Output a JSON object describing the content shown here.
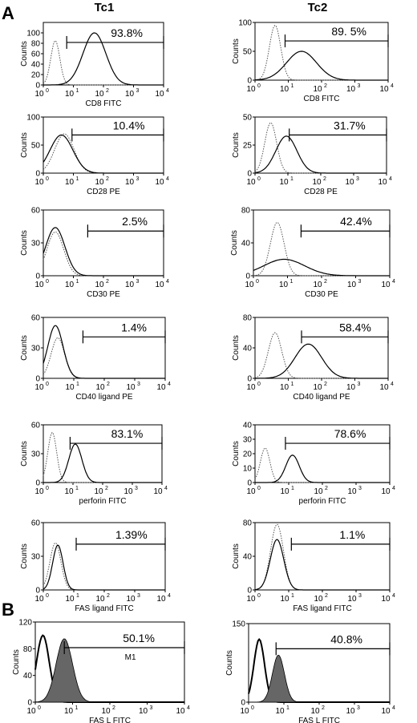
{
  "figure": {
    "panel_labels": [
      "A",
      "B"
    ],
    "column_titles": [
      "Tc1",
      "Tc2"
    ]
  },
  "colors": {
    "solid": "#000000",
    "dotted": "#555555",
    "fill": "#666666",
    "frame": "#000000"
  },
  "chart_data": [
    {
      "type": "area",
      "panel": "A",
      "column": "Tc1",
      "xlabel": "CD8 FITC",
      "ylabel": "Counts",
      "x_scale": "log",
      "xlim": [
        1,
        10000
      ],
      "x_ticks": [
        "10",
        "10",
        "10",
        "10",
        "10"
      ],
      "x_tick_exponents": [
        "0",
        "1",
        "2",
        "3",
        "4"
      ],
      "ylim": [
        0,
        120
      ],
      "y_ticks": [
        "0",
        "20",
        "40",
        "60",
        "80",
        "100"
      ],
      "gate_label": "93.8%",
      "gate_range": [
        6,
        10000
      ],
      "series": [
        {
          "style": "dotted",
          "peaks": [
            {
              "center": 2.5,
              "height": 85,
              "width": 0.15
            }
          ]
        },
        {
          "style": "solid",
          "peaks": [
            {
              "center": 50,
              "height": 100,
              "width": 0.38
            }
          ]
        }
      ]
    },
    {
      "type": "area",
      "panel": "A",
      "column": "Tc2",
      "xlabel": "CD8 FITC",
      "ylabel": "Counts",
      "x_scale": "log",
      "xlim": [
        1,
        10000
      ],
      "x_ticks": [
        "10",
        "10",
        "10",
        "10",
        "10"
      ],
      "x_tick_exponents": [
        "0",
        "1",
        "2",
        "3",
        "4"
      ],
      "ylim": [
        0,
        100
      ],
      "y_ticks": [
        "0",
        "50",
        "100"
      ],
      "gate_label": "89. 5%",
      "gate_range": [
        8,
        10000
      ],
      "series": [
        {
          "style": "dotted",
          "peaks": [
            {
              "center": 4,
              "height": 95,
              "width": 0.17
            }
          ]
        },
        {
          "style": "solid",
          "peaks": [
            {
              "center": 25,
              "height": 50,
              "width": 0.45
            }
          ]
        }
      ]
    },
    {
      "type": "area",
      "panel": "A",
      "column": "Tc1",
      "xlabel": "CD28 PE",
      "ylabel": "Counts",
      "x_scale": "log",
      "xlim": [
        1,
        10000
      ],
      "x_ticks": [
        "10",
        "10",
        "10",
        "10",
        "10"
      ],
      "x_tick_exponents": [
        "0",
        "1",
        "2",
        "3",
        "4"
      ],
      "ylim": [
        0,
        100
      ],
      "y_ticks": [
        "0",
        "50",
        "100"
      ],
      "gate_label": "10.4%",
      "gate_range": [
        9,
        10000
      ],
      "series": [
        {
          "style": "dotted",
          "peaks": [
            {
              "center": 5,
              "height": 70,
              "width": 0.32
            }
          ]
        },
        {
          "style": "solid",
          "peaks": [
            {
              "center": 4,
              "height": 68,
              "width": 0.38
            }
          ]
        }
      ]
    },
    {
      "type": "area",
      "panel": "A",
      "column": "Tc2",
      "xlabel": "CD28 PE",
      "ylabel": "Counts",
      "x_scale": "log",
      "xlim": [
        1,
        10000
      ],
      "x_ticks": [
        "10",
        "10",
        "10",
        "10",
        "10"
      ],
      "x_tick_exponents": [
        "0",
        "1",
        "2",
        "3",
        "4"
      ],
      "ylim": [
        0,
        50
      ],
      "y_ticks": [
        "0",
        "25",
        "50"
      ],
      "gate_label": "31.7%",
      "gate_range": [
        11,
        10000
      ],
      "series": [
        {
          "style": "dotted",
          "peaks": [
            {
              "center": 3,
              "height": 45,
              "width": 0.18
            }
          ]
        },
        {
          "style": "solid",
          "peaks": [
            {
              "center": 9,
              "height": 33,
              "width": 0.32
            }
          ]
        }
      ]
    },
    {
      "type": "area",
      "panel": "A",
      "column": "Tc1",
      "xlabel": "CD30 PE",
      "ylabel": "Counts",
      "x_scale": "log",
      "xlim": [
        1,
        10000
      ],
      "x_ticks": [
        "10",
        "10",
        "10",
        "10",
        "10"
      ],
      "x_tick_exponents": [
        "0",
        "1",
        "2",
        "3",
        "4"
      ],
      "ylim": [
        0,
        60
      ],
      "y_ticks": [
        "0",
        "30",
        "60"
      ],
      "gate_label": "2.5%",
      "gate_range": [
        30,
        10000
      ],
      "series": [
        {
          "style": "dotted",
          "peaks": [
            {
              "center": 2.5,
              "height": 40,
              "width": 0.28
            }
          ]
        },
        {
          "style": "solid",
          "peaks": [
            {
              "center": 2.5,
              "height": 44,
              "width": 0.32
            }
          ]
        }
      ]
    },
    {
      "type": "area",
      "panel": "A",
      "column": "Tc2",
      "xlabel": "CD30 PE",
      "ylabel": "Counts",
      "x_scale": "log",
      "xlim": [
        1,
        10000
      ],
      "x_ticks": [
        "10",
        "10",
        "10",
        "10",
        "10"
      ],
      "x_tick_exponents": [
        "0",
        "1",
        "2",
        "3",
        "4"
      ],
      "ylim": [
        0,
        80
      ],
      "y_ticks": [
        "0",
        "40",
        "80"
      ],
      "gate_label": "42.4%",
      "gate_range": [
        25,
        10000
      ],
      "series": [
        {
          "style": "dotted",
          "peaks": [
            {
              "center": 5,
              "height": 65,
              "width": 0.2
            }
          ]
        },
        {
          "style": "solid",
          "peaks": [
            {
              "center": 8,
              "height": 20,
              "width": 0.6
            }
          ]
        }
      ]
    },
    {
      "type": "area",
      "panel": "A",
      "column": "Tc1",
      "xlabel": "CD40 ligand PE",
      "ylabel": "Counts",
      "x_scale": "log",
      "xlim": [
        1,
        10000
      ],
      "x_ticks": [
        "10",
        "10",
        "10",
        "10",
        "10"
      ],
      "x_tick_exponents": [
        "0",
        "1",
        "2",
        "3",
        "4"
      ],
      "ylim": [
        0,
        60
      ],
      "y_ticks": [
        "0",
        "30",
        "60"
      ],
      "gate_label": "1.4%",
      "gate_range": [
        20,
        10000
      ],
      "series": [
        {
          "style": "dotted",
          "peaks": [
            {
              "center": 3,
              "height": 40,
              "width": 0.22
            }
          ]
        },
        {
          "style": "solid",
          "peaks": [
            {
              "center": 2.5,
              "height": 52,
              "width": 0.25
            }
          ]
        }
      ]
    },
    {
      "type": "area",
      "panel": "A",
      "column": "Tc2",
      "xlabel": "CD40 ligand PE",
      "ylabel": "Counts",
      "x_scale": "log",
      "xlim": [
        1,
        10000
      ],
      "x_ticks": [
        "10",
        "10",
        "10",
        "10",
        "10"
      ],
      "x_tick_exponents": [
        "0",
        "1",
        "2",
        "3",
        "4"
      ],
      "ylim": [
        0,
        80
      ],
      "y_ticks": [
        "0",
        "40",
        "80"
      ],
      "gate_label": "58.4%",
      "gate_range": [
        25,
        10000
      ],
      "series": [
        {
          "style": "dotted",
          "peaks": [
            {
              "center": 4,
              "height": 60,
              "width": 0.2
            }
          ]
        },
        {
          "style": "solid",
          "peaks": [
            {
              "center": 40,
              "height": 45,
              "width": 0.4
            }
          ]
        }
      ]
    },
    {
      "type": "area",
      "panel": "A",
      "column": "Tc1",
      "xlabel": "perforin FITC",
      "ylabel": "Counts",
      "x_scale": "log",
      "xlim": [
        1,
        10000
      ],
      "x_ticks": [
        "10",
        "10",
        "10",
        "10",
        "10"
      ],
      "x_tick_exponents": [
        "0",
        "1",
        "2",
        "3",
        "4"
      ],
      "ylim": [
        0,
        60
      ],
      "y_ticks": [
        "0",
        "30",
        "60"
      ],
      "gate_label": "83.1%",
      "gate_range": [
        8,
        10000
      ],
      "series": [
        {
          "style": "dotted",
          "peaks": [
            {
              "center": 2,
              "height": 52,
              "width": 0.15
            }
          ]
        },
        {
          "style": "solid",
          "peaks": [
            {
              "center": 12,
              "height": 40,
              "width": 0.22
            }
          ]
        }
      ]
    },
    {
      "type": "area",
      "panel": "A",
      "column": "Tc2",
      "xlabel": "perforin FITC",
      "ylabel": "Counts",
      "x_scale": "log",
      "xlim": [
        1,
        10000
      ],
      "x_ticks": [
        "10",
        "10",
        "10",
        "10",
        "10"
      ],
      "x_tick_exponents": [
        "0",
        "1",
        "2",
        "3",
        "4"
      ],
      "ylim": [
        0,
        40
      ],
      "y_ticks": [
        "0",
        "10",
        "20",
        "30",
        "40"
      ],
      "gate_label": "78.6%",
      "gate_range": [
        8,
        10000
      ],
      "series": [
        {
          "style": "dotted",
          "peaks": [
            {
              "center": 2,
              "height": 24,
              "width": 0.14
            }
          ]
        },
        {
          "style": "solid",
          "peaks": [
            {
              "center": 13,
              "height": 19,
              "width": 0.2
            }
          ]
        }
      ]
    },
    {
      "type": "area",
      "panel": "A",
      "column": "Tc1",
      "xlabel": "FAS ligand FITC",
      "ylabel": "Counts",
      "x_scale": "log",
      "xlim": [
        1,
        10000
      ],
      "x_ticks": [
        "10",
        "10",
        "10",
        "10",
        "10"
      ],
      "x_tick_exponents": [
        "0",
        "1",
        "2",
        "3",
        "4"
      ],
      "ylim": [
        0,
        60
      ],
      "y_ticks": [
        "0",
        "30",
        "60"
      ],
      "gate_label": "1.39%",
      "gate_range": [
        12,
        10000
      ],
      "series": [
        {
          "style": "dotted",
          "peaks": [
            {
              "center": 2.5,
              "height": 42,
              "width": 0.18
            }
          ]
        },
        {
          "style": "solid",
          "peaks": [
            {
              "center": 3,
              "height": 40,
              "width": 0.17
            }
          ]
        }
      ]
    },
    {
      "type": "area",
      "panel": "A",
      "column": "Tc2",
      "xlabel": "FAS ligand FITC",
      "ylabel": "Counts",
      "x_scale": "log",
      "xlim": [
        1,
        10000
      ],
      "x_ticks": [
        "10",
        "10",
        "10",
        "10",
        "10"
      ],
      "x_tick_exponents": [
        "0",
        "1",
        "2",
        "3",
        "4"
      ],
      "ylim": [
        0,
        80
      ],
      "y_ticks": [
        "0",
        "40",
        "80"
      ],
      "gate_label": "1.1%",
      "gate_range": [
        12,
        10000
      ],
      "series": [
        {
          "style": "dotted",
          "peaks": [
            {
              "center": 4.5,
              "height": 78,
              "width": 0.19
            }
          ]
        },
        {
          "style": "solid",
          "peaks": [
            {
              "center": 4.5,
              "height": 60,
              "width": 0.2
            }
          ]
        }
      ]
    },
    {
      "type": "area",
      "panel": "B",
      "column": "Tc1",
      "xlabel": "FAS L FITC",
      "ylabel": "Counts",
      "x_scale": "log",
      "xlim": [
        1,
        10000
      ],
      "x_ticks": [
        "10",
        "10",
        "10",
        "10",
        "10"
      ],
      "x_tick_exponents": [
        "0",
        "1",
        "2",
        "3",
        "4"
      ],
      "ylim": [
        0,
        120
      ],
      "y_ticks": [
        "0",
        "40",
        "80",
        "120"
      ],
      "gate_label": "50.1%",
      "gate_marker": "M1",
      "gate_range": [
        6,
        10000
      ],
      "series": [
        {
          "style": "outline",
          "peaks": [
            {
              "center": 1.6,
              "height": 100,
              "width": 0.17
            }
          ]
        },
        {
          "style": "filled",
          "peaks": [
            {
              "center": 6,
              "height": 95,
              "width": 0.22
            }
          ]
        }
      ]
    },
    {
      "type": "area",
      "panel": "B",
      "column": "Tc2",
      "xlabel": "FAS L FITC",
      "ylabel": "Counts",
      "x_scale": "log",
      "xlim": [
        1,
        10000
      ],
      "x_ticks": [
        "10",
        "10",
        "10",
        "10",
        "10"
      ],
      "x_tick_exponents": [
        "0",
        "1",
        "2",
        "3",
        "4"
      ],
      "ylim": [
        0,
        150
      ],
      "y_ticks": [
        "0",
        "150"
      ],
      "gate_label": "40.8%",
      "gate_range": [
        6,
        10000
      ],
      "series": [
        {
          "style": "outline",
          "peaks": [
            {
              "center": 2,
              "height": 120,
              "width": 0.15
            }
          ]
        },
        {
          "style": "filled",
          "peaks": [
            {
              "center": 7,
              "height": 90,
              "width": 0.17
            }
          ]
        }
      ]
    }
  ]
}
